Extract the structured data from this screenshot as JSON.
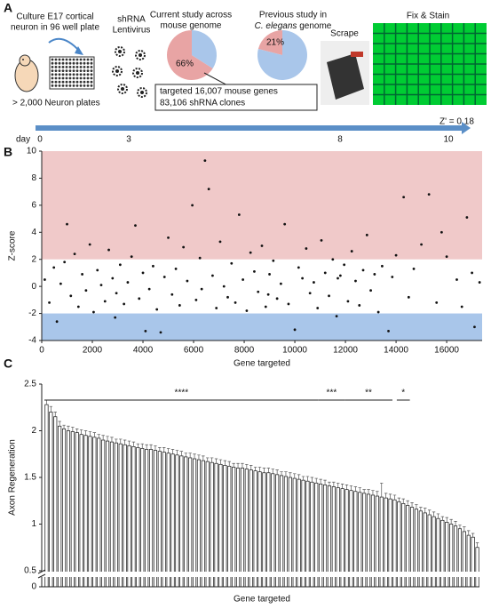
{
  "panel_labels": [
    "A",
    "B",
    "C"
  ],
  "panel_a": {
    "culture": [
      "Culture E17 cortical",
      "neuron in 96 well plate"
    ],
    "plates": "> 2,000 Neuron plates",
    "virus": [
      "shRNA",
      "Lentivirus"
    ],
    "current": {
      "title": [
        "Current study across",
        "mouse genome"
      ],
      "values": [
        66,
        34
      ],
      "colors": [
        "#e8a4a4",
        "#a9c6ea"
      ],
      "value_labels": [
        "66%",
        null
      ]
    },
    "previous": {
      "title": [
        "Previous study in",
        "C. elegans",
        "genome"
      ],
      "values": [
        21,
        79
      ],
      "colors": [
        "#e8a4a4",
        "#a9c6ea"
      ],
      "value_labels": [
        "21%",
        null
      ]
    },
    "box": [
      "targeted 16,007 mouse genes",
      "83,106 shRNA clones"
    ],
    "scrape": "Scrape",
    "stain": "Fix & Stain",
    "zprime": "Z' = 0.18",
    "day": "day",
    "days": [
      "0",
      "3",
      "8",
      "10"
    ]
  },
  "chart_data": [
    {
      "type": "scatter",
      "xlabel": "Gene targeted",
      "ylabel": "Z-score",
      "color": "#111",
      "x": [
        120,
        300,
        480,
        600,
        750,
        900,
        1000,
        1150,
        1300,
        1450,
        1600,
        1750,
        1900,
        2050,
        2200,
        2350,
        2500,
        2650,
        2800,
        2950,
        3100,
        3250,
        3400,
        3550,
        3700,
        3850,
        4000,
        4100,
        4250,
        4400,
        4550,
        4700,
        4850,
        5000,
        5150,
        5300,
        5450,
        5600,
        5750,
        5950,
        6100,
        6250,
        6450,
        6600,
        6750,
        6900,
        7050,
        7200,
        7350,
        7500,
        7650,
        7800,
        7950,
        8100,
        8250,
        8400,
        8550,
        8700,
        8850,
        9000,
        9150,
        9300,
        9450,
        9600,
        9750,
        10000,
        10150,
        10300,
        10450,
        10600,
        10750,
        10900,
        11050,
        11200,
        11350,
        11500,
        11650,
        11800,
        11950,
        12100,
        12250,
        12400,
        12550,
        12700,
        12850,
        13000,
        13150,
        13300,
        13450,
        13700,
        13850,
        14000,
        14300,
        14500,
        14700,
        15000,
        15300,
        15600,
        16000,
        16400,
        16600,
        16800,
        17000,
        17100,
        17300,
        6320,
        11700,
        8950,
        15800,
        2900
      ],
      "values": [
        0.5,
        -1.2,
        1.4,
        -2.6,
        0.2,
        1.8,
        4.6,
        -0.7,
        2.4,
        -1.5,
        0.9,
        -0.3,
        3.1,
        -1.9,
        1.2,
        0.1,
        -1.1,
        2.7,
        0.6,
        -0.5,
        1.6,
        -1.3,
        0.3,
        2.2,
        4.5,
        -0.9,
        1.0,
        -3.3,
        -0.2,
        1.5,
        -1.7,
        -3.4,
        0.7,
        3.6,
        -0.6,
        1.3,
        -1.4,
        2.9,
        0.4,
        6.0,
        -1.0,
        2.1,
        9.3,
        7.2,
        0.8,
        -1.6,
        3.3,
        0.0,
        -0.8,
        1.7,
        -1.2,
        5.3,
        0.5,
        -1.8,
        2.5,
        1.1,
        -0.4,
        3.0,
        -1.5,
        0.9,
        1.9,
        -0.9,
        0.2,
        4.6,
        -1.3,
        -3.2,
        1.4,
        0.6,
        2.8,
        -0.5,
        0.3,
        -1.6,
        3.4,
        1.0,
        -0.7,
        2.0,
        -2.2,
        0.8,
        1.6,
        -1.1,
        2.6,
        0.4,
        -1.4,
        1.2,
        3.8,
        -0.3,
        0.9,
        -1.9,
        1.5,
        -3.3,
        0.7,
        2.3,
        6.6,
        -0.8,
        1.3,
        3.1,
        6.8,
        -1.2,
        2.2,
        0.5,
        -1.5,
        5.1,
        1.0,
        -3.0,
        0.3,
        -0.2,
        0.6,
        -0.6,
        4.0,
        -2.3
      ],
      "xlim": [
        0,
        17400
      ],
      "ylim": [
        -4,
        10
      ],
      "xticks": [
        0,
        2000,
        4000,
        6000,
        8000,
        10000,
        12000,
        14000,
        16000
      ],
      "yticks": [
        -4,
        -2,
        0,
        2,
        4,
        6,
        8,
        10
      ],
      "bands": [
        {
          "from": 2,
          "to": 10,
          "color": "#f0c9c9"
        },
        {
          "from": -4,
          "to": -2,
          "color": "#a9c6ea"
        }
      ]
    },
    {
      "type": "bar",
      "xlabel": "Gene targeted",
      "ylabel": "Axon Regeneration",
      "values": [
        2.28,
        2.2,
        2.15,
        2.05,
        2.02,
        2.0,
        1.99,
        1.98,
        1.96,
        1.95,
        1.94,
        1.93,
        1.92,
        1.9,
        1.89,
        1.88,
        1.87,
        1.86,
        1.85,
        1.84,
        1.83,
        1.82,
        1.81,
        1.8,
        1.8,
        1.79,
        1.78,
        1.77,
        1.76,
        1.75,
        1.74,
        1.73,
        1.72,
        1.71,
        1.7,
        1.69,
        1.68,
        1.67,
        1.66,
        1.65,
        1.64,
        1.63,
        1.62,
        1.61,
        1.6,
        1.6,
        1.59,
        1.58,
        1.57,
        1.56,
        1.55,
        1.55,
        1.54,
        1.53,
        1.52,
        1.51,
        1.5,
        1.49,
        1.48,
        1.47,
        1.46,
        1.45,
        1.44,
        1.43,
        1.42,
        1.41,
        1.4,
        1.39,
        1.38,
        1.37,
        1.36,
        1.35,
        1.34,
        1.33,
        1.32,
        1.31,
        1.3,
        1.29,
        1.28,
        1.27,
        1.26,
        1.24,
        1.22,
        1.2,
        1.18,
        1.16,
        1.14,
        1.12,
        1.1,
        1.08,
        1.06,
        1.04,
        1.02,
        1.0,
        0.98,
        0.95,
        0.92,
        0.88,
        0.86,
        0.75
      ],
      "errors": [
        0.05,
        0.06,
        0.05,
        0.05,
        0.04,
        0.05,
        0.05,
        0.04,
        0.05,
        0.05,
        0.05,
        0.05,
        0.04,
        0.05,
        0.05,
        0.05,
        0.04,
        0.05,
        0.05,
        0.05,
        0.05,
        0.04,
        0.05,
        0.05,
        0.05,
        0.05,
        0.04,
        0.05,
        0.05,
        0.05,
        0.05,
        0.05,
        0.04,
        0.05,
        0.05,
        0.05,
        0.05,
        0.04,
        0.05,
        0.05,
        0.05,
        0.05,
        0.05,
        0.04,
        0.05,
        0.05,
        0.05,
        0.05,
        0.04,
        0.05,
        0.05,
        0.05,
        0.05,
        0.05,
        0.04,
        0.05,
        0.05,
        0.05,
        0.05,
        0.04,
        0.05,
        0.05,
        0.05,
        0.05,
        0.05,
        0.04,
        0.05,
        0.05,
        0.05,
        0.05,
        0.05,
        0.05,
        0.05,
        0.04,
        0.05,
        0.05,
        0.05,
        0.15,
        0.05,
        0.05,
        0.05,
        0.04,
        0.05,
        0.05,
        0.05,
        0.05,
        0.04,
        0.05,
        0.05,
        0.05,
        0.05,
        0.04,
        0.05,
        0.05,
        0.05,
        0.04,
        0.05,
        0.05,
        0.04,
        0.05
      ],
      "ylim": [
        0.5,
        2.5
      ],
      "yticks": [
        0.5,
        1,
        1.5,
        2,
        2.5
      ],
      "break_ticks": [
        0
      ],
      "significance": [
        {
          "label": "****",
          "from": 0,
          "to": 62
        },
        {
          "label": "***",
          "from": 63,
          "to": 68
        },
        {
          "label": "**",
          "from": 69,
          "to": 79
        },
        {
          "label": "*",
          "from": 81,
          "to": 83
        }
      ]
    }
  ]
}
